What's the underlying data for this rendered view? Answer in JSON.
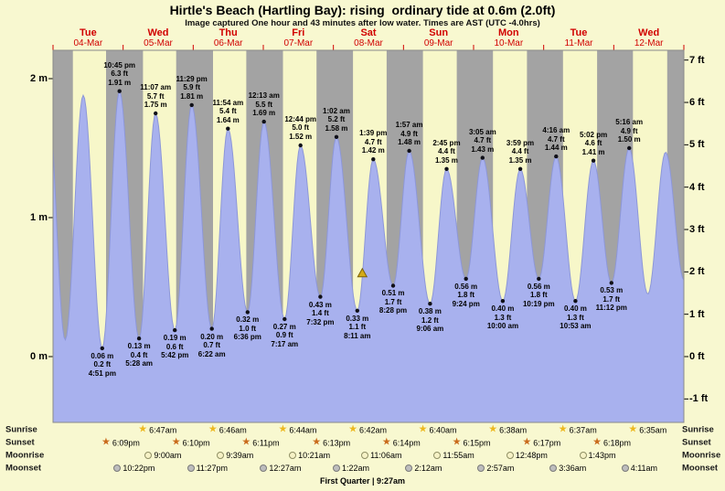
{
  "title": "Hirtle's Beach (Hartling Bay): rising  ordinary tide at 0.6m (2.0ft)",
  "subtitle": "Image captured One hour and 43 minutes after low water. Times are AST (UTC -4.0hrs)",
  "chart_data": {
    "type": "area",
    "x_days": [
      {
        "name": "Tue",
        "date": "04-Mar"
      },
      {
        "name": "Wed",
        "date": "05-Mar"
      },
      {
        "name": "Thu",
        "date": "06-Mar"
      },
      {
        "name": "Fri",
        "date": "07-Mar"
      },
      {
        "name": "Sat",
        "date": "08-Mar"
      },
      {
        "name": "Sun",
        "date": "09-Mar"
      },
      {
        "name": "Mon",
        "date": "10-Mar"
      },
      {
        "name": "Tue",
        "date": "11-Mar"
      },
      {
        "name": "Wed",
        "date": "12-Mar"
      }
    ],
    "y_axis_left": {
      "unit": "m",
      "ticks": [
        "2 m",
        "1 m",
        "0 m"
      ]
    },
    "y_axis_right": {
      "unit": "ft",
      "ticks": [
        "7 ft",
        "6 ft",
        "5 ft",
        "4 ft",
        "3 ft",
        "2 ft",
        "1 ft",
        "0 ft",
        "-1 ft"
      ]
    },
    "tide_events": [
      {
        "day": 3,
        "time": "22:05",
        "height_m": 1.9,
        "type": "high",
        "labels": [],
        "estimated": true
      },
      {
        "day": 4,
        "time": "04:10",
        "height_m": 0.12,
        "type": "low",
        "labels": [],
        "estimated": true
      },
      {
        "day": 4,
        "time": "10:21",
        "height_m": 1.88,
        "type": "high",
        "labels": [],
        "estimated": true
      },
      {
        "day": 4,
        "time": "16:51",
        "height_m": 0.06,
        "type": "low",
        "labels": [
          "0.06 m",
          "0.2 ft",
          "4:51 pm"
        ]
      },
      {
        "day": 4,
        "time": "22:45",
        "height_m": 1.91,
        "type": "high",
        "labels": [
          "10:45 pm",
          "6.3 ft",
          "1.91 m"
        ]
      },
      {
        "day": 5,
        "time": "05:28",
        "height_m": 0.13,
        "type": "low",
        "labels": [
          "0.13 m",
          "0.4 ft",
          "5:28 am"
        ]
      },
      {
        "day": 5,
        "time": "11:07",
        "height_m": 1.75,
        "type": "high",
        "labels": [
          "11:07 am",
          "5.7 ft",
          "1.75 m"
        ]
      },
      {
        "day": 5,
        "time": "17:42",
        "height_m": 0.19,
        "type": "low",
        "labels": [
          "0.19 m",
          "0.6 ft",
          "5:42 pm"
        ]
      },
      {
        "day": 5,
        "time": "23:29",
        "height_m": 1.81,
        "type": "high",
        "labels": [
          "11:29 pm",
          "5.9 ft",
          "1.81 m"
        ]
      },
      {
        "day": 6,
        "time": "06:22",
        "height_m": 0.2,
        "type": "low",
        "labels": [
          "0.20 m",
          "0.7 ft",
          "6:22 am"
        ]
      },
      {
        "day": 6,
        "time": "11:54",
        "height_m": 1.64,
        "type": "high",
        "labels": [
          "11:54 am",
          "5.4 ft",
          "1.64 m"
        ]
      },
      {
        "day": 6,
        "time": "18:36",
        "height_m": 0.32,
        "type": "low",
        "labels": [
          "0.32 m",
          "1.0 ft",
          "6:36 pm"
        ]
      },
      {
        "day": 7,
        "time": "00:13",
        "height_m": 1.69,
        "type": "high",
        "labels": [
          "12:13 am",
          "5.5 ft",
          "1.69 m"
        ]
      },
      {
        "day": 7,
        "time": "07:17",
        "height_m": 0.27,
        "type": "low",
        "labels": [
          "0.27 m",
          "0.9 ft",
          "7:17 am"
        ]
      },
      {
        "day": 7,
        "time": "12:44",
        "height_m": 1.52,
        "type": "high",
        "labels": [
          "12:44 pm",
          "5.0 ft",
          "1.52 m"
        ]
      },
      {
        "day": 7,
        "time": "19:32",
        "height_m": 0.43,
        "type": "low",
        "labels": [
          "0.43 m",
          "1.4 ft",
          "7:32 pm"
        ]
      },
      {
        "day": 8,
        "time": "01:02",
        "height_m": 1.58,
        "type": "high",
        "labels": [
          "1:02 am",
          "5.2 ft",
          "1.58 m"
        ]
      },
      {
        "day": 8,
        "time": "08:11",
        "height_m": 0.33,
        "type": "low",
        "labels": [
          "0.33 m",
          "1.1 ft",
          "8:11 am"
        ]
      },
      {
        "day": 8,
        "time": "13:39",
        "height_m": 1.42,
        "type": "high",
        "labels": [
          "1:39 pm",
          "4.7 ft",
          "1.42 m"
        ]
      },
      {
        "day": 8,
        "time": "20:28",
        "height_m": 0.51,
        "type": "low",
        "labels": [
          "0.51 m",
          "1.7 ft",
          "8:28 pm"
        ]
      },
      {
        "day": 9,
        "time": "01:57",
        "height_m": 1.48,
        "type": "high",
        "labels": [
          "1:57 am",
          "4.9 ft",
          "1.48 m"
        ]
      },
      {
        "day": 9,
        "time": "09:06",
        "height_m": 0.38,
        "type": "low",
        "labels": [
          "0.38 m",
          "1.2 ft",
          "9:06 am"
        ]
      },
      {
        "day": 9,
        "time": "14:45",
        "height_m": 1.35,
        "type": "high",
        "labels": [
          "2:45 pm",
          "4.4 ft",
          "1.35 m"
        ]
      },
      {
        "day": 9,
        "time": "21:24",
        "height_m": 0.56,
        "type": "low",
        "labels": [
          "0.56 m",
          "1.8 ft",
          "9:24 pm"
        ]
      },
      {
        "day": 10,
        "time": "03:05",
        "height_m": 1.43,
        "type": "high",
        "labels": [
          "3:05 am",
          "4.7 ft",
          "1.43 m"
        ]
      },
      {
        "day": 10,
        "time": "10:00",
        "height_m": 0.4,
        "type": "low",
        "labels": [
          "0.40 m",
          "1.3 ft",
          "10:00 am"
        ]
      },
      {
        "day": 10,
        "time": "15:59",
        "height_m": 1.35,
        "type": "high",
        "labels": [
          "3:59 pm",
          "4.4 ft",
          "1.35 m"
        ]
      },
      {
        "day": 10,
        "time": "22:19",
        "height_m": 0.56,
        "type": "low",
        "labels": [
          "0.56 m",
          "1.8 ft",
          "10:19 pm"
        ]
      },
      {
        "day": 11,
        "time": "04:16",
        "height_m": 1.44,
        "type": "high",
        "labels": [
          "4:16 am",
          "4.7 ft",
          "1.44 m"
        ]
      },
      {
        "day": 11,
        "time": "10:53",
        "height_m": 0.4,
        "type": "low",
        "labels": [
          "0.40 m",
          "1.3 ft",
          "10:53 am"
        ]
      },
      {
        "day": 11,
        "time": "17:02",
        "height_m": 1.41,
        "type": "high",
        "labels": [
          "5:02 pm",
          "4.6 ft",
          "1.41 m"
        ]
      },
      {
        "day": 11,
        "time": "23:12",
        "height_m": 0.53,
        "type": "low",
        "labels": [
          "0.53 m",
          "1.7 ft",
          "11:12 pm"
        ]
      },
      {
        "day": 12,
        "time": "05:16",
        "height_m": 1.5,
        "type": "high",
        "labels": [
          "5:16 am",
          "4.9 ft",
          "1.50 m"
        ]
      },
      {
        "day": 12,
        "time": "11:40",
        "height_m": 0.45,
        "type": "low",
        "labels": [],
        "estimated": true
      },
      {
        "day": 12,
        "time": "17:45",
        "height_m": 1.47,
        "type": "high",
        "labels": [],
        "estimated": true
      },
      {
        "day": 13,
        "time": "00:05",
        "height_m": 0.55,
        "type": "low",
        "labels": [],
        "estimated": true
      }
    ],
    "current_marker": {
      "day": 8,
      "time": "09:54",
      "height_m": 0.6
    },
    "colors": {
      "page_bg": "#f8f8d0",
      "day_band": "#f7f7c9",
      "night_band": "#a3a3a3",
      "tide_fill": "#a8b1ee",
      "tide_stroke": "#8d97d8",
      "date_red": "#d10000",
      "marker": "#d4ab18",
      "sunrise_star": "#edb91f",
      "sunset_star": "#c96a1b",
      "moonrise_fill": "#f6f2c6",
      "moonset_fill": "#bdbdbd"
    }
  },
  "astro": {
    "rows": [
      {
        "label": "Sunrise",
        "entries": [
          {
            "d": 5,
            "t": "6:47am"
          },
          {
            "d": 6,
            "t": "6:46am"
          },
          {
            "d": 7,
            "t": "6:44am"
          },
          {
            "d": 8,
            "t": "6:42am"
          },
          {
            "d": 9,
            "t": "6:40am"
          },
          {
            "d": 10,
            "t": "6:38am"
          },
          {
            "d": 11,
            "t": "6:37am"
          },
          {
            "d": 12,
            "t": "6:35am"
          }
        ]
      },
      {
        "label": "Sunset",
        "entries": [
          {
            "d": 4,
            "t": "6:09pm"
          },
          {
            "d": 5,
            "t": "6:10pm"
          },
          {
            "d": 6,
            "t": "6:11pm"
          },
          {
            "d": 7,
            "t": "6:13pm"
          },
          {
            "d": 8,
            "t": "6:14pm"
          },
          {
            "d": 9,
            "t": "6:15pm"
          },
          {
            "d": 10,
            "t": "6:17pm"
          },
          {
            "d": 11,
            "t": "6:18pm"
          }
        ]
      },
      {
        "label": "Moonrise",
        "entries": [
          {
            "d": 5,
            "t": "9:00am"
          },
          {
            "d": 6,
            "t": "9:39am"
          },
          {
            "d": 7,
            "t": "10:21am"
          },
          {
            "d": 8,
            "t": "11:06am"
          },
          {
            "d": 9,
            "t": "11:55am"
          },
          {
            "d": 10,
            "t": "12:48pm"
          },
          {
            "d": 11,
            "t": "1:43pm"
          }
        ]
      },
      {
        "label": "Moonset",
        "entries": [
          {
            "d": 4,
            "t": "10:22pm"
          },
          {
            "d": 5,
            "t": "11:27pm"
          },
          {
            "d": 7,
            "t": "12:27am"
          },
          {
            "d": 8,
            "t": "1:22am"
          },
          {
            "d": 9,
            "t": "2:12am"
          },
          {
            "d": 10,
            "t": "2:57am"
          },
          {
            "d": 11,
            "t": "3:36am"
          },
          {
            "d": 12,
            "t": "4:11am"
          }
        ]
      }
    ],
    "footer": "First Quarter | 9:27am"
  }
}
